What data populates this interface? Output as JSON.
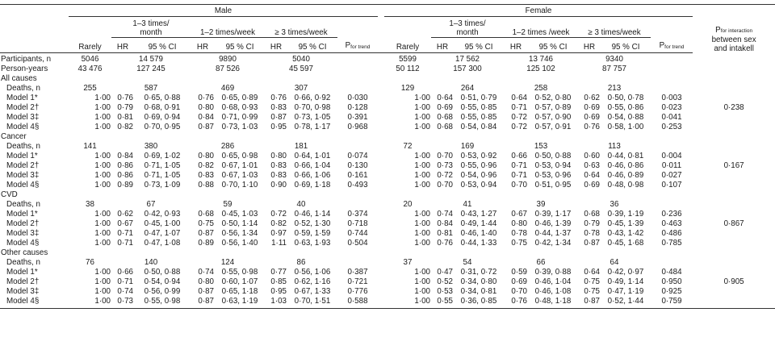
{
  "header": {
    "male": "Male",
    "female": "Female",
    "freq13": [
      "1–3 times/",
      "month"
    ],
    "freq12w": "1–2 times/week",
    "freq12w_f": "1–2 times /week",
    "freq3w": "≥ 3 times/week",
    "rarely": "Rarely",
    "hr": "HR",
    "ci": "95 % CI",
    "p_trend": "P",
    "p_trend_sub": "for trend",
    "p_int": "P",
    "p_int_sub": "for interaction",
    "p_int_line2": "between sex",
    "p_int_line3": "and intakell"
  },
  "participants": {
    "label": "Participants, n",
    "male": [
      "5046",
      "14 579",
      "9890",
      "5040"
    ],
    "female": [
      "5599",
      "17 562",
      "13 746",
      "9340"
    ]
  },
  "person_years": {
    "label": "Person-years",
    "male": [
      "43 476",
      "127 245",
      "87 526",
      "45 597"
    ],
    "female": [
      "50 112",
      "157 300",
      "125 102",
      "87 757"
    ]
  },
  "sections": [
    {
      "title": "All causes",
      "deaths_label": "Deaths, n",
      "deaths_male": [
        "255",
        "587",
        "469",
        "307"
      ],
      "deaths_female": [
        "129",
        "264",
        "258",
        "213"
      ],
      "p_interaction": "0·238",
      "models": [
        {
          "label": "Model 1*",
          "m": [
            "1·00",
            "0·76",
            "0·65, 0·88",
            "0·76",
            "0·65, 0·89",
            "0·76",
            "0·66, 0·92",
            "0·030"
          ],
          "f": [
            "1·00",
            "0·64",
            "0·51, 0·79",
            "0·64",
            "0·52, 0·80",
            "0·62",
            "0·50, 0·78",
            "0·003"
          ]
        },
        {
          "label": "Model 2†",
          "m": [
            "1·00",
            "0·79",
            "0·68, 0·91",
            "0·80",
            "0·68, 0·93",
            "0·83",
            "0·70, 0·98",
            "0·128"
          ],
          "f": [
            "1·00",
            "0·69",
            "0·55, 0·85",
            "0·71",
            "0·57, 0·89",
            "0·69",
            "0·55, 0·86",
            "0·023"
          ]
        },
        {
          "label": "Model 3‡",
          "m": [
            "1·00",
            "0·81",
            "0·69, 0·94",
            "0·84",
            "0·71, 0·99",
            "0·87",
            "0·73, 1·05",
            "0·391"
          ],
          "f": [
            "1·00",
            "0·68",
            "0·55, 0·85",
            "0·72",
            "0·57, 0·90",
            "0·69",
            "0·54, 0·88",
            "0·041"
          ]
        },
        {
          "label": "Model 4§",
          "m": [
            "1·00",
            "0·82",
            "0·70, 0·95",
            "0·87",
            "0·73, 1·03",
            "0·95",
            "0·78, 1·17",
            "0·968"
          ],
          "f": [
            "1·00",
            "0·68",
            "0·54, 0·84",
            "0·72",
            "0·57, 0·91",
            "0·76",
            "0·58, 1·00",
            "0·253"
          ]
        }
      ]
    },
    {
      "title": "Cancer",
      "deaths_label": "Deaths, n",
      "deaths_male": [
        "141",
        "380",
        "286",
        "181"
      ],
      "deaths_female": [
        "72",
        "169",
        "153",
        "113"
      ],
      "p_interaction": "0·167",
      "models": [
        {
          "label": "Model 1*",
          "m": [
            "1·00",
            "0·84",
            "0·69, 1·02",
            "0·80",
            "0·65, 0·98",
            "0·80",
            "0·64, 1·01",
            "0·074"
          ],
          "f": [
            "1·00",
            "0·70",
            "0·53, 0·92",
            "0·66",
            "0·50, 0·88",
            "0·60",
            "0·44, 0·81",
            "0·004"
          ]
        },
        {
          "label": "Model 2†",
          "m": [
            "1·00",
            "0·86",
            "0·71, 1·05",
            "0·82",
            "0·67, 1·01",
            "0·83",
            "0·66, 1·04",
            "0·130"
          ],
          "f": [
            "1·00",
            "0·73",
            "0·55, 0·96",
            "0·71",
            "0·53, 0·94",
            "0·63",
            "0·46, 0·86",
            "0·011"
          ]
        },
        {
          "label": "Model 3‡",
          "m": [
            "1·00",
            "0·86",
            "0·71, 1·05",
            "0·83",
            "0·67, 1·03",
            "0·83",
            "0·66, 1·06",
            "0·161"
          ],
          "f": [
            "1·00",
            "0·72",
            "0·54, 0·96",
            "0·71",
            "0·53, 0·96",
            "0·64",
            "0·46, 0·89",
            "0·027"
          ]
        },
        {
          "label": "Model 4§",
          "m": [
            "1·00",
            "0·89",
            "0·73, 1·09",
            "0·88",
            "0·70, 1·10",
            "0·90",
            "0·69, 1·18",
            "0·493"
          ],
          "f": [
            "1·00",
            "0·70",
            "0·53, 0·94",
            "0·70",
            "0·51, 0·95",
            "0·69",
            "0·48, 0·98",
            "0·107"
          ]
        }
      ]
    },
    {
      "title": "CVD",
      "deaths_label": "Deaths, n",
      "deaths_male": [
        "38",
        "67",
        "59",
        "40"
      ],
      "deaths_female": [
        "20",
        "41",
        "39",
        "36"
      ],
      "p_interaction": "0·867",
      "models": [
        {
          "label": "Model 1*",
          "m": [
            "1·00",
            "0·62",
            "0·42, 0·93",
            "0·68",
            "0·45, 1·03",
            "0·72",
            "0·46, 1·14",
            "0·374"
          ],
          "f": [
            "1·00",
            "0·74",
            "0·43, 1·27",
            "0·67",
            "0·39, 1·17",
            "0·68",
            "0·39, 1·19",
            "0·236"
          ]
        },
        {
          "label": "Model 2†",
          "m": [
            "1·00",
            "0·67",
            "0·45, 1·00",
            "0·75",
            "0·50, 1·14",
            "0·82",
            "0·52, 1·30",
            "0·718"
          ],
          "f": [
            "1·00",
            "0·84",
            "0·49, 1·44",
            "0·80",
            "0·46, 1·39",
            "0·79",
            "0·45, 1·39",
            "0·463"
          ]
        },
        {
          "label": "Model 3‡",
          "m": [
            "1·00",
            "0·71",
            "0·47, 1·07",
            "0·87",
            "0·56, 1·34",
            "0·97",
            "0·59, 1·59",
            "0·744"
          ],
          "f": [
            "1·00",
            "0·81",
            "0·46, 1·40",
            "0·78",
            "0·44, 1·37",
            "0·78",
            "0·43, 1·42",
            "0·486"
          ]
        },
        {
          "label": "Model 4§",
          "m": [
            "1·00",
            "0·71",
            "0·47, 1·08",
            "0·89",
            "0·56, 1·40",
            "1·11",
            "0·63, 1·93",
            "0·504"
          ],
          "f": [
            "1·00",
            "0·76",
            "0·44, 1·33",
            "0·75",
            "0·42, 1·34",
            "0·87",
            "0·45, 1·68",
            "0·785"
          ]
        }
      ]
    },
    {
      "title": "Other causes",
      "deaths_label": "Deaths, n",
      "deaths_male": [
        "76",
        "140",
        "124",
        "86"
      ],
      "deaths_female": [
        "37",
        "54",
        "66",
        "64"
      ],
      "p_interaction": "0·905",
      "models": [
        {
          "label": "Model 1*",
          "m": [
            "1·00",
            "0·66",
            "0·50, 0·88",
            "0·74",
            "0·55, 0·98",
            "0·77",
            "0·56, 1·06",
            "0·387"
          ],
          "f": [
            "1·00",
            "0·47",
            "0·31, 0·72",
            "0·59",
            "0·39, 0·88",
            "0·64",
            "0·42, 0·97",
            "0·484"
          ]
        },
        {
          "label": "Model 2†",
          "m": [
            "1·00",
            "0·71",
            "0·54, 0·94",
            "0·80",
            "0·60, 1·07",
            "0·85",
            "0·62, 1·16",
            "0·721"
          ],
          "f": [
            "1·00",
            "0·52",
            "0·34, 0·80",
            "0·69",
            "0·46, 1·04",
            "0·75",
            "0·49, 1·14",
            "0·950"
          ]
        },
        {
          "label": "Model 3‡",
          "m": [
            "1·00",
            "0·74",
            "0·56, 0·99",
            "0·87",
            "0·65, 1·18",
            "0·95",
            "0·67, 1·33",
            "0·776"
          ],
          "f": [
            "1·00",
            "0·53",
            "0·34, 0·81",
            "0·70",
            "0·46, 1·08",
            "0·75",
            "0·47, 1·19",
            "0·925"
          ]
        },
        {
          "label": "Model 4§",
          "m": [
            "1·00",
            "0·73",
            "0·55, 0·98",
            "0·87",
            "0·63, 1·19",
            "1·03",
            "0·70, 1·51",
            "0·588"
          ],
          "f": [
            "1·00",
            "0·55",
            "0·36, 0·85",
            "0·76",
            "0·48, 1·18",
            "0·87",
            "0·52, 1·44",
            "0·759"
          ]
        }
      ]
    }
  ]
}
